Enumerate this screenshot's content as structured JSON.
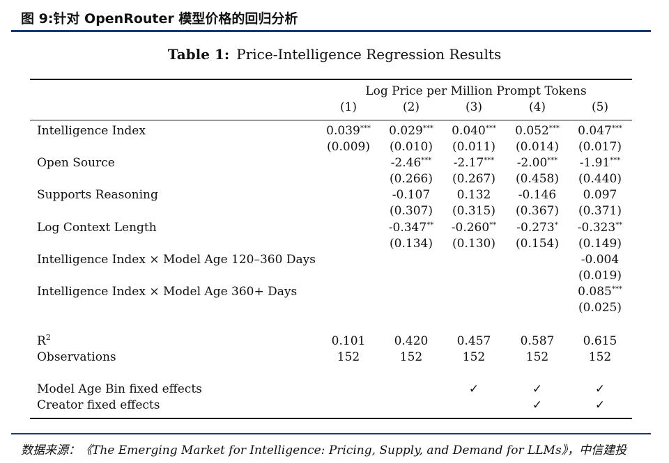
{
  "figure_title": "图 9:针对 OpenRouter 模型价格的回归分析",
  "table": {
    "label": "Table 1:",
    "title": "Price-Intelligence Regression Results",
    "dependent_variable": "Log Price per Million Prompt Tokens",
    "columns": [
      "(1)",
      "(2)",
      "(3)",
      "(4)",
      "(5)"
    ],
    "rows": [
      {
        "label": "Intelligence Index",
        "coef": [
          [
            "0.039",
            "***"
          ],
          [
            "0.029",
            "***"
          ],
          [
            "0.040",
            "***"
          ],
          [
            "0.052",
            "***"
          ],
          [
            "0.047",
            "***"
          ]
        ],
        "se": [
          "(0.009)",
          "(0.010)",
          "(0.011)",
          "(0.014)",
          "(0.017)"
        ]
      },
      {
        "label": "Open Source",
        "coef": [
          [
            "",
            ""
          ],
          [
            "-2.46",
            "***"
          ],
          [
            "-2.17",
            "***"
          ],
          [
            "-2.00",
            "***"
          ],
          [
            "-1.91",
            "***"
          ]
        ],
        "se": [
          "",
          "(0.266)",
          "(0.267)",
          "(0.458)",
          "(0.440)"
        ]
      },
      {
        "label": "Supports Reasoning",
        "coef": [
          [
            "",
            ""
          ],
          [
            "-0.107",
            ""
          ],
          [
            "0.132",
            ""
          ],
          [
            "-0.146",
            ""
          ],
          [
            "0.097",
            ""
          ]
        ],
        "se": [
          "",
          "(0.307)",
          "(0.315)",
          "(0.367)",
          "(0.371)"
        ]
      },
      {
        "label": "Log Context Length",
        "coef": [
          [
            "",
            ""
          ],
          [
            "-0.347",
            "**"
          ],
          [
            "-0.260",
            "**"
          ],
          [
            "-0.273",
            "*"
          ],
          [
            "-0.323",
            "**"
          ]
        ],
        "se": [
          "",
          "(0.134)",
          "(0.130)",
          "(0.154)",
          "(0.149)"
        ]
      },
      {
        "label": "Intelligence Index × Model Age 120–360 Days",
        "coef": [
          [
            "",
            ""
          ],
          [
            "",
            ""
          ],
          [
            "",
            ""
          ],
          [
            "",
            ""
          ],
          [
            "-0.004",
            ""
          ]
        ],
        "se": [
          "",
          "",
          "",
          "",
          "(0.019)"
        ]
      },
      {
        "label": "Intelligence Index × Model Age 360+ Days",
        "coef": [
          [
            "",
            ""
          ],
          [
            "",
            ""
          ],
          [
            "",
            ""
          ],
          [
            "",
            ""
          ],
          [
            "0.085",
            "***"
          ]
        ],
        "se": [
          "",
          "",
          "",
          "",
          "(0.025)"
        ]
      }
    ],
    "stats": [
      {
        "label": "R",
        "label_sup": "2",
        "values": [
          "0.101",
          "0.420",
          "0.457",
          "0.587",
          "0.615"
        ]
      },
      {
        "label": "Observations",
        "label_sup": "",
        "values": [
          "152",
          "152",
          "152",
          "152",
          "152"
        ]
      }
    ],
    "fixed_effects": [
      {
        "label": "Model Age Bin fixed effects",
        "values": [
          "",
          "",
          "✓",
          "✓",
          "✓"
        ]
      },
      {
        "label": "Creator fixed effects",
        "values": [
          "",
          "",
          "",
          "✓",
          "✓"
        ]
      }
    ]
  },
  "source": "数据来源：《The Emerging Market for Intelligence: Pricing, Supply, and Demand for LLMs》，中信建投"
}
